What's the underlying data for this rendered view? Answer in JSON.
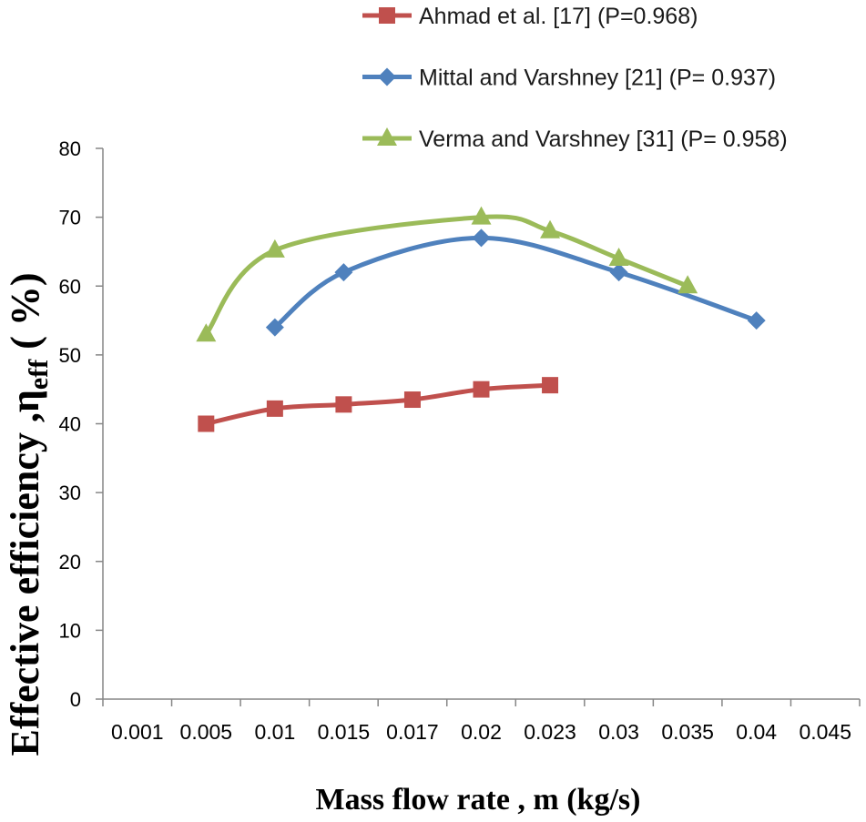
{
  "chart_data": {
    "type": "line",
    "smooth": true,
    "xlabel": "Mass flow rate , m (kg/s)",
    "ylabel_parts": [
      "Effective efficiency ,η",
      "eff",
      " ( %)"
    ],
    "categories": [
      "0.001",
      "0.005",
      "0.01",
      "0.015",
      "0.017",
      "0.02",
      "0.023",
      "0.03",
      "0.035",
      "0.04",
      "0.045"
    ],
    "ylim": [
      0,
      80
    ],
    "yticks": [
      0,
      10,
      20,
      30,
      40,
      50,
      60,
      70,
      80
    ],
    "grid": false,
    "legend": "top",
    "series": [
      {
        "name": "Ahmad et al. [17] (P=0.968)",
        "color": "#C0504D",
        "marker": "square",
        "values": [
          null,
          40,
          42.2,
          42.8,
          43.5,
          45,
          45.6,
          null,
          null,
          null,
          null
        ]
      },
      {
        "name": "Mittal and Varshney [21] (P= 0.937)",
        "color": "#4F81BD",
        "marker": "diamond",
        "values": [
          null,
          null,
          54,
          62,
          null,
          67,
          null,
          62,
          null,
          55,
          null
        ]
      },
      {
        "name": "Verma and Varshney [31] (P= 0.958)",
        "color": "#9BBB59",
        "marker": "triangle",
        "values": [
          null,
          53,
          65.2,
          null,
          null,
          70,
          68,
          64,
          60,
          null,
          null
        ]
      }
    ]
  }
}
